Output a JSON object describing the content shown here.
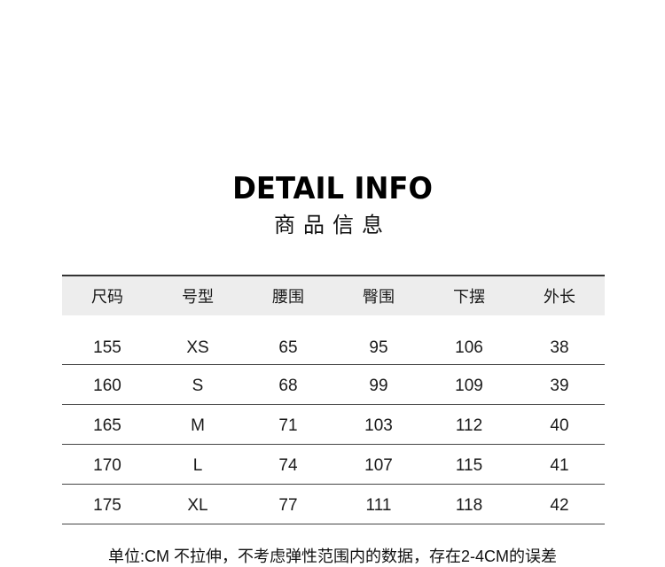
{
  "title": "DETAIL INFO",
  "subtitle": "商品信息",
  "table": {
    "headers": [
      "尺码",
      "号型",
      "腰围",
      "臀围",
      "下摆",
      "外长"
    ],
    "rows": [
      [
        "155",
        "XS",
        "65",
        "95",
        "106",
        "38"
      ],
      [
        "160",
        "S",
        "68",
        "99",
        "109",
        "39"
      ],
      [
        "165",
        "M",
        "71",
        "103",
        "112",
        "40"
      ],
      [
        "170",
        "L",
        "74",
        "107",
        "115",
        "41"
      ],
      [
        "175",
        "XL",
        "77",
        "111",
        "118",
        "42"
      ]
    ]
  },
  "note": "单位:CM   不拉伸，不考虑弹性范围内的数据，存在2-4CM的误差"
}
